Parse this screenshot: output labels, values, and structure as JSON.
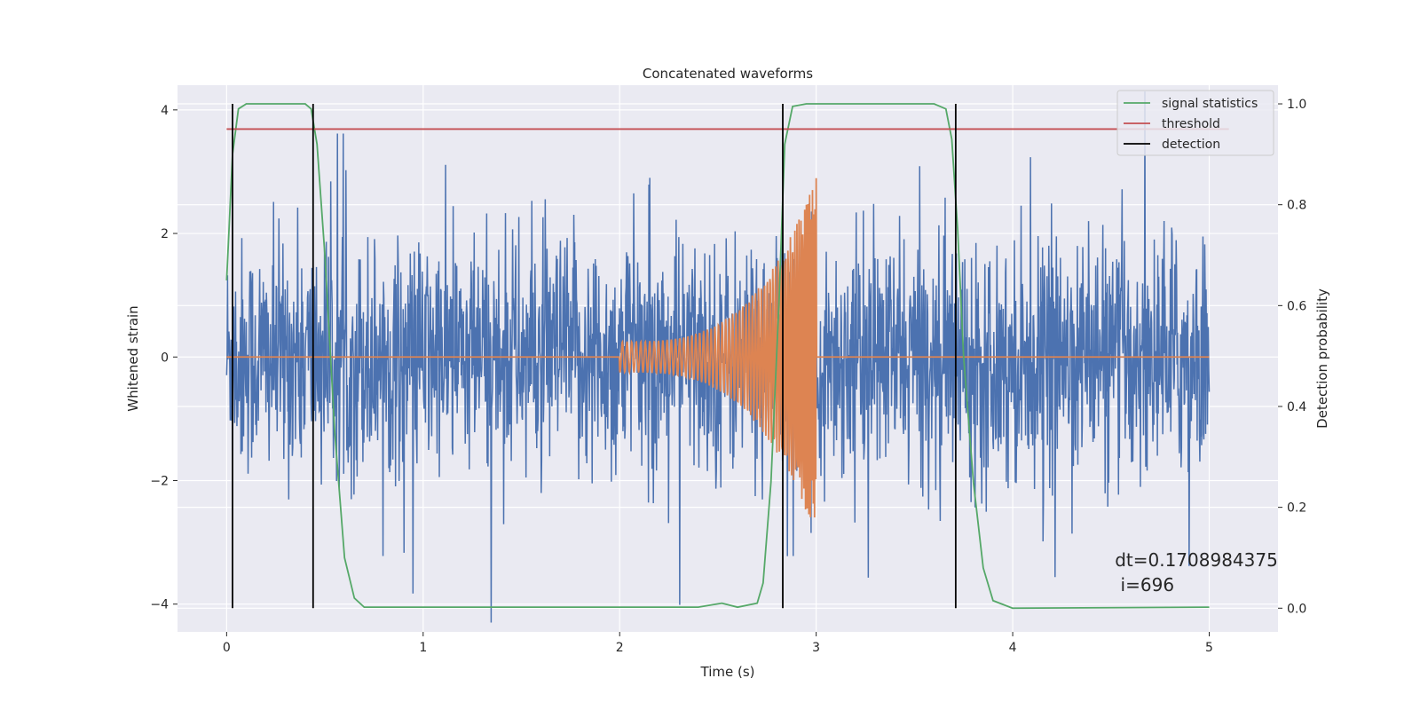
{
  "chart_data": {
    "type": "line",
    "title": "Concatenated waveforms",
    "xlabel": "Time (s)",
    "ylabel": "Whitened strain",
    "ylabel_right": "Detection probability",
    "xlim": [
      -0.25,
      5.35
    ],
    "ylim": [
      -4.45,
      4.4
    ],
    "ylim_right": [
      -0.047,
      1.037
    ],
    "xticks": [
      0,
      1,
      2,
      3,
      4,
      5
    ],
    "yticks": [
      -4,
      -2,
      0,
      2,
      4
    ],
    "yticks_right": [
      0.0,
      0.2,
      0.4,
      0.6,
      0.8,
      1.0
    ],
    "grid": true,
    "legend_position": "top-right",
    "annotation": [
      "dt=0.1708984375",
      " i=696"
    ],
    "annotation_pos": [
      4.52,
      0.083
    ],
    "noise_series": {
      "name": "",
      "color": "#4c72b0",
      "x_range": [
        0,
        5
      ],
      "samples": 2200,
      "typical_std": 0.95,
      "max_abs": 4.3
    },
    "waveform_series": {
      "name": "",
      "color": "#dd8452",
      "chirp_start": 2.0,
      "chirp_end": 3.0,
      "amp_start": 0.25,
      "amp_end": 2.9,
      "baseline": 0
    },
    "series": [
      {
        "name": "signal statistics",
        "color": "#55a868",
        "axis": "right",
        "x": [
          0.0,
          0.03,
          0.06,
          0.1,
          0.15,
          0.4,
          0.43,
          0.46,
          0.5,
          0.55,
          0.6,
          0.65,
          0.7,
          2.4,
          2.52,
          2.6,
          2.7,
          2.73,
          2.77,
          2.81,
          2.84,
          2.88,
          2.95,
          3.6,
          3.66,
          3.69,
          3.72,
          3.75,
          3.8,
          3.85,
          3.9,
          4.0,
          5.0
        ],
        "y": [
          0.65,
          0.9,
          0.99,
          1.0,
          1.0,
          1.0,
          0.99,
          0.92,
          0.7,
          0.35,
          0.1,
          0.02,
          0.002,
          0.002,
          0.01,
          0.002,
          0.01,
          0.05,
          0.25,
          0.6,
          0.92,
          0.995,
          1.0,
          1.0,
          0.99,
          0.93,
          0.75,
          0.5,
          0.25,
          0.08,
          0.015,
          0.0,
          0.002
        ]
      },
      {
        "name": "threshold",
        "color": "#c44e52",
        "axis": "right",
        "x": [
          0,
          5.1
        ],
        "y": [
          0.95,
          0.95
        ]
      }
    ],
    "detection": {
      "name": "detection",
      "color": "#000000",
      "x": [
        0.03,
        0.44,
        2.83,
        3.71
      ]
    }
  }
}
